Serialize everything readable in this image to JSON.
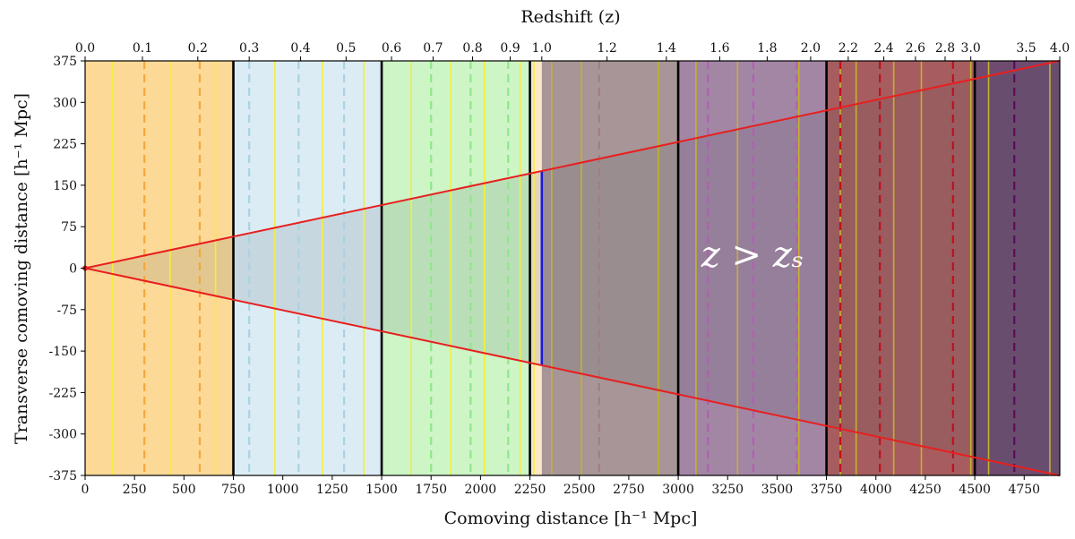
{
  "chart_data": {
    "type": "area",
    "title": "",
    "xlabel": "Comoving distance [h⁻¹ Mpc]",
    "ylabel": "Transverse comoving distance [h⁻¹ Mpc]",
    "x2label": "Redshift (z)",
    "annotation": "z > zₛ",
    "xlim": [
      0,
      4930
    ],
    "ylim": [
      -375,
      375
    ],
    "x_ticks": [
      "0",
      "250",
      "500",
      "750",
      "1000",
      "1250",
      "1500",
      "1750",
      "2000",
      "2250",
      "2500",
      "2750",
      "3000",
      "3250",
      "3500",
      "3750",
      "4000",
      "4250",
      "4500",
      "4750"
    ],
    "x_tick_values": [
      0,
      250,
      500,
      750,
      1000,
      1250,
      1500,
      1750,
      2000,
      2250,
      2500,
      2750,
      3000,
      3250,
      3500,
      3750,
      4000,
      4250,
      4500,
      4750
    ],
    "y_ticks": [
      "375",
      "300",
      "225",
      "150",
      "75",
      "0",
      "-75",
      "-150",
      "-225",
      "-300",
      "-375"
    ],
    "y_tick_values": [
      375,
      300,
      225,
      150,
      75,
      0,
      -75,
      -150,
      -225,
      -300,
      -375
    ],
    "x2_ticks": [
      {
        "label": "0.0",
        "x": 0
      },
      {
        "label": "0.1",
        "x": 290
      },
      {
        "label": "0.2",
        "x": 570
      },
      {
        "label": "0.3",
        "x": 830
      },
      {
        "label": "0.4",
        "x": 1090
      },
      {
        "label": "0.5",
        "x": 1320
      },
      {
        "label": "0.6",
        "x": 1550
      },
      {
        "label": "0.7",
        "x": 1760
      },
      {
        "label": "0.8",
        "x": 1960
      },
      {
        "label": "0.9",
        "x": 2150
      },
      {
        "label": "1.0",
        "x": 2310
      },
      {
        "label": "1.2",
        "x": 2640
      },
      {
        "label": "1.4",
        "x": 2940
      },
      {
        "label": "1.6",
        "x": 3210
      },
      {
        "label": "1.8",
        "x": 3450
      },
      {
        "label": "2.0",
        "x": 3670
      },
      {
        "label": "2.2",
        "x": 3860
      },
      {
        "label": "2.4",
        "x": 4040
      },
      {
        "label": "2.6",
        "x": 4200
      },
      {
        "label": "2.8",
        "x": 4350
      },
      {
        "label": "3.0",
        "x": 4480
      },
      {
        "label": "3.5",
        "x": 4760
      },
      {
        "label": "4.0",
        "x": 4930
      }
    ],
    "shells": [
      {
        "name": "shell-1",
        "x_start": 0,
        "x_end": 750,
        "color": "#fdd998"
      },
      {
        "name": "shell-2",
        "x_start": 750,
        "x_end": 1500,
        "color": "#dcecf4"
      },
      {
        "name": "shell-3",
        "x_start": 1500,
        "x_end": 2250,
        "color": "#cdf5c6"
      },
      {
        "name": "shell-3b",
        "x_start": 2250,
        "x_end": 2310,
        "color": "#fde9c9"
      },
      {
        "name": "shell-4",
        "x_start": 2310,
        "x_end": 3000,
        "color": "#a79597"
      },
      {
        "name": "shell-5",
        "x_start": 3000,
        "x_end": 3750,
        "color": "#a385a4"
      },
      {
        "name": "shell-6",
        "x_start": 3750,
        "x_end": 4500,
        "color": "#a75d5f"
      },
      {
        "name": "shell-7",
        "x_start": 4500,
        "x_end": 4930,
        "color": "#6f4b70"
      }
    ],
    "shell_boundaries": [
      750,
      1500,
      2250,
      3000,
      3750,
      4500
    ],
    "source_plane": 2310,
    "lightcone": {
      "slope": 0.0761,
      "color": "#e81f1f"
    },
    "yellow_lines": [
      140,
      430,
      660,
      960,
      1200,
      1410,
      1650,
      1850,
      2020,
      2200,
      2270,
      2360,
      2510,
      2900,
      3090,
      3300,
      3610,
      3820,
      3900,
      4090,
      4230,
      4480,
      4570,
      4880
    ],
    "dashed_lines": [
      {
        "x": 300,
        "color": "#f5a73b"
      },
      {
        "x": 580,
        "color": "#f5a73b"
      },
      {
        "x": 830,
        "color": "#a8d3e3"
      },
      {
        "x": 1080,
        "color": "#a8d3e3"
      },
      {
        "x": 1310,
        "color": "#a8d3e3"
      },
      {
        "x": 1750,
        "color": "#8fe78a"
      },
      {
        "x": 1950,
        "color": "#8fe78a"
      },
      {
        "x": 2140,
        "color": "#8fe78a"
      },
      {
        "x": 2600,
        "color": "#9e7f84"
      },
      {
        "x": 3150,
        "color": "#b25fb4"
      },
      {
        "x": 3380,
        "color": "#b25fb4"
      },
      {
        "x": 3600,
        "color": "#b25fb4"
      },
      {
        "x": 3820,
        "color": "#c0101c"
      },
      {
        "x": 4020,
        "color": "#c0101c"
      },
      {
        "x": 4390,
        "color": "#c0101c"
      },
      {
        "x": 4700,
        "color": "#5e0a5c"
      }
    ],
    "grid": false,
    "legend": "none"
  }
}
